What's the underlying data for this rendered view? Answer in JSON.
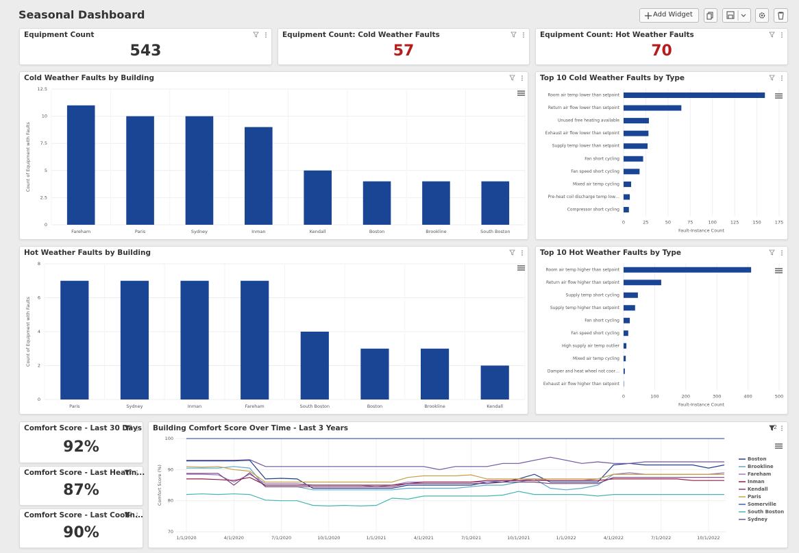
{
  "header": {
    "title": "Seasonal Dashboard",
    "add_widget": "Add Widget"
  },
  "kpis": [
    {
      "title": "Equipment Count",
      "value": "543",
      "color": "#333333"
    },
    {
      "title": "Equipment Count: Cold Weather Faults",
      "value": "57",
      "color": "#b71c1c"
    },
    {
      "title": "Equipment Count: Hot Weather Faults",
      "value": "70",
      "color": "#b71c1c"
    },
    {
      "title": "Comfort Score - Last 30 Days",
      "value": "92%",
      "color": "#333333",
      "filter_count": "2"
    },
    {
      "title": "Comfort Score - Last Heatin...",
      "value": "87%",
      "color": "#333333",
      "filter_count": "2"
    },
    {
      "title": "Comfort Score - Last Coolin...",
      "value": "90%",
      "color": "#333333",
      "filter_count": "2"
    }
  ],
  "chart_data": [
    {
      "type": "bar",
      "title": "Cold Weather Faults by Building",
      "y_label": "Count of Equipment with Faults",
      "categories": [
        "Fareham",
        "Paris",
        "Sydney",
        "Inman",
        "Kendall",
        "Boston",
        "Brookline",
        "South Boston"
      ],
      "values": [
        11,
        10,
        10,
        9,
        5,
        4,
        4,
        4
      ],
      "color": "#1a4494",
      "ylim": [
        0,
        12.5
      ],
      "yticks": [
        0,
        2.5,
        5,
        7.5,
        10,
        12.5
      ],
      "grid": true
    },
    {
      "type": "hbar",
      "title": "Top 10 Cold Weather Faults by Type",
      "x_label": "Fault-Instance Count",
      "categories": [
        "Room air temp lower than setpoint",
        "Return air flow lower than setpoint",
        "Unused free heating available",
        "Exhaust air flow lower than setpoint",
        "Supply temp lower than setpoint",
        "Fan short cycling",
        "Fan speed short cycling",
        "Mixed air temp cycling",
        "Pre-heat coil discharge temp low…",
        "Compressor short cycling"
      ],
      "values": [
        159,
        65,
        28.5,
        28,
        27,
        22,
        18,
        8.5,
        7,
        6
      ],
      "color": "#1a4494",
      "xlim": [
        0,
        175
      ],
      "xticks": [
        0,
        25,
        50,
        75,
        100,
        125,
        150,
        175
      ],
      "grid": true
    },
    {
      "type": "bar",
      "title": "Hot Weather Faults by Building",
      "y_label": "Count of Equipment with Faults",
      "categories": [
        "Paris",
        "Sydney",
        "Inman",
        "Fareham",
        "South Boston",
        "Boston",
        "Brookline",
        "Kendall"
      ],
      "values": [
        7,
        7,
        7,
        7,
        4,
        3,
        3,
        2
      ],
      "color": "#1a4494",
      "ylim": [
        0,
        8
      ],
      "yticks": [
        0,
        2,
        4,
        6,
        8
      ],
      "grid": true
    },
    {
      "type": "hbar",
      "title": "Top 10 Hot Weather Faults by Type",
      "x_label": "Fault-Instance Count",
      "categories": [
        "Room air temp higher than setpoint",
        "Return air flow higher than setpoint",
        "Supply temp short cycling",
        "Supply temp higher than setpoint",
        "Fan short cycling",
        "Fan speed short cycling",
        "High supply air temp outlier",
        "Mixed air temp cycling",
        "Damper and heat wheel not coor…",
        "Exhaust air flow higher than setpoint"
      ],
      "values": [
        410,
        121,
        46,
        37,
        20,
        15,
        9,
        7,
        4,
        1
      ],
      "color": "#1a4494",
      "xlim": [
        0,
        500
      ],
      "xticks": [
        0,
        100,
        200,
        300,
        400,
        500
      ],
      "grid": true
    },
    {
      "type": "line",
      "title": "Building Comfort Score Over Time - Last 3 Years",
      "y_label": "Comfort Score (%)",
      "filter_count": "2",
      "x": [
        "2020-01",
        "2020-02",
        "2020-03",
        "2020-04",
        "2020-05",
        "2020-06",
        "2020-07",
        "2020-08",
        "2020-09",
        "2020-10",
        "2020-11",
        "2020-12",
        "2021-01",
        "2021-02",
        "2021-03",
        "2021-04",
        "2021-05",
        "2021-06",
        "2021-07",
        "2021-08",
        "2021-09",
        "2021-10",
        "2021-11",
        "2021-12",
        "2022-01",
        "2022-02",
        "2022-03",
        "2022-04",
        "2022-05",
        "2022-06",
        "2022-07",
        "2022-08",
        "2022-09",
        "2022-10",
        "2022-11"
      ],
      "xticks": [
        {
          "value": "2020-01",
          "label": "1/1/2020"
        },
        {
          "value": "2020-04",
          "label": "4/1/2020"
        },
        {
          "value": "2020-07",
          "label": "7/1/2020"
        },
        {
          "value": "2020-10",
          "label": "10/1/2020"
        },
        {
          "value": "2021-01",
          "label": "1/1/2021"
        },
        {
          "value": "2021-04",
          "label": "4/1/2021"
        },
        {
          "value": "2021-07",
          "label": "7/1/2021"
        },
        {
          "value": "2021-10",
          "label": "10/1/2021"
        },
        {
          "value": "2022-01",
          "label": "1/1/2022"
        },
        {
          "value": "2022-04",
          "label": "4/1/2022"
        },
        {
          "value": "2022-07",
          "label": "7/1/2022"
        },
        {
          "value": "2022-10",
          "label": "10/1/2022"
        }
      ],
      "ylim": [
        70,
        100
      ],
      "yticks": [
        70,
        80,
        90,
        100
      ],
      "grid": true,
      "series": [
        {
          "name": "Boston",
          "color": "#1f3d8c",
          "values": [
            92.8,
            92.8,
            92.8,
            92.8,
            93,
            87,
            87.2,
            87,
            84,
            84,
            84,
            84,
            84,
            84,
            85,
            85,
            85,
            85,
            85,
            86,
            86,
            87,
            88.5,
            86,
            86,
            86,
            86,
            91.5,
            92,
            91.5,
            91.5,
            91.5,
            91.5,
            90.5,
            91.5
          ]
        },
        {
          "name": "Brookline",
          "color": "#5ba7c9",
          "values": [
            90.5,
            90.5,
            90.5,
            91,
            90.5,
            84.5,
            84.5,
            84.5,
            83.5,
            83.5,
            83.5,
            83.5,
            83.5,
            83.5,
            84,
            84,
            84,
            84,
            84.5,
            85,
            85,
            86,
            87,
            84,
            83.5,
            84,
            85,
            88.5,
            88.5,
            88.5,
            88.5,
            88.5,
            88.5,
            88.5,
            88.5
          ]
        },
        {
          "name": "Fareham",
          "color": "#9a7cc5",
          "values": [
            88.5,
            88.5,
            88.3,
            86,
            88.5,
            85.5,
            85.5,
            85.5,
            85,
            85,
            85,
            85,
            84.5,
            85,
            86,
            86,
            86,
            86,
            86,
            86,
            86.5,
            86.5,
            87,
            86.5,
            86.5,
            86.5,
            87,
            88.5,
            89,
            88.5,
            88.5,
            88.5,
            88.5,
            88.5,
            89
          ]
        },
        {
          "name": "Inman",
          "color": "#8c1d40",
          "values": [
            87,
            87,
            86.8,
            86.5,
            87.5,
            85,
            85,
            85,
            85,
            85,
            85,
            85,
            85,
            85,
            85.5,
            86,
            86,
            86,
            86,
            86.5,
            86.5,
            86.5,
            86.5,
            86.5,
            86.5,
            86.5,
            86.5,
            87,
            87,
            87,
            87,
            87,
            86.5,
            86.5,
            86.5
          ]
        },
        {
          "name": "Kendall",
          "color": "#7b3f7a",
          "values": [
            88.8,
            88.8,
            88.8,
            85,
            89,
            84.5,
            84.5,
            84.5,
            84.5,
            84.5,
            84.5,
            84.5,
            84.5,
            84.5,
            85.5,
            85.5,
            85.5,
            85.5,
            85.5,
            85.5,
            86,
            86,
            86,
            85.5,
            85.5,
            85.5,
            85.5,
            87.5,
            87.5,
            87.5,
            87.5,
            87.5,
            87.5,
            87.5,
            87.5
          ]
        },
        {
          "name": "Paris",
          "color": "#c9a043",
          "values": [
            91,
            90.8,
            91,
            90,
            89.5,
            86,
            86,
            86,
            86,
            86,
            86,
            86,
            86,
            86,
            87.5,
            88,
            88,
            88,
            88.3,
            87,
            87,
            87,
            87,
            87,
            87,
            87,
            87,
            88.5,
            88.5,
            88.5,
            88.5,
            88.5,
            88.5,
            88.5,
            88.5
          ]
        },
        {
          "name": "Somerville",
          "color": "#3b5fcf",
          "values": [
            100,
            100,
            100,
            100,
            100,
            100,
            100,
            100,
            100,
            100,
            100,
            100,
            100,
            100,
            100,
            100,
            100,
            100,
            100,
            100,
            100,
            100,
            100,
            100,
            100,
            100,
            100,
            100,
            100,
            100,
            100,
            100,
            100,
            100,
            100
          ]
        },
        {
          "name": "South Boston",
          "color": "#43b6b0",
          "values": [
            82,
            82.2,
            82,
            82.2,
            82,
            80.2,
            80,
            80,
            78.5,
            78.3,
            78.5,
            78.3,
            78.5,
            80.8,
            80.5,
            81.5,
            81.5,
            81.5,
            81.5,
            81.5,
            81.8,
            83,
            82,
            82,
            82,
            82,
            81.5,
            82,
            82,
            82,
            82,
            82,
            82,
            82,
            82
          ]
        },
        {
          "name": "Sydney",
          "color": "#6f52a6",
          "values": [
            93,
            93,
            93,
            93,
            93.2,
            91,
            91,
            91,
            91,
            91,
            91,
            91,
            91,
            91,
            91,
            91,
            90,
            91,
            91,
            91,
            92,
            92,
            93,
            94,
            93,
            92,
            92.5,
            92,
            92,
            92.5,
            92.5,
            92.5,
            92.5,
            92.5,
            92.5
          ]
        }
      ]
    }
  ]
}
